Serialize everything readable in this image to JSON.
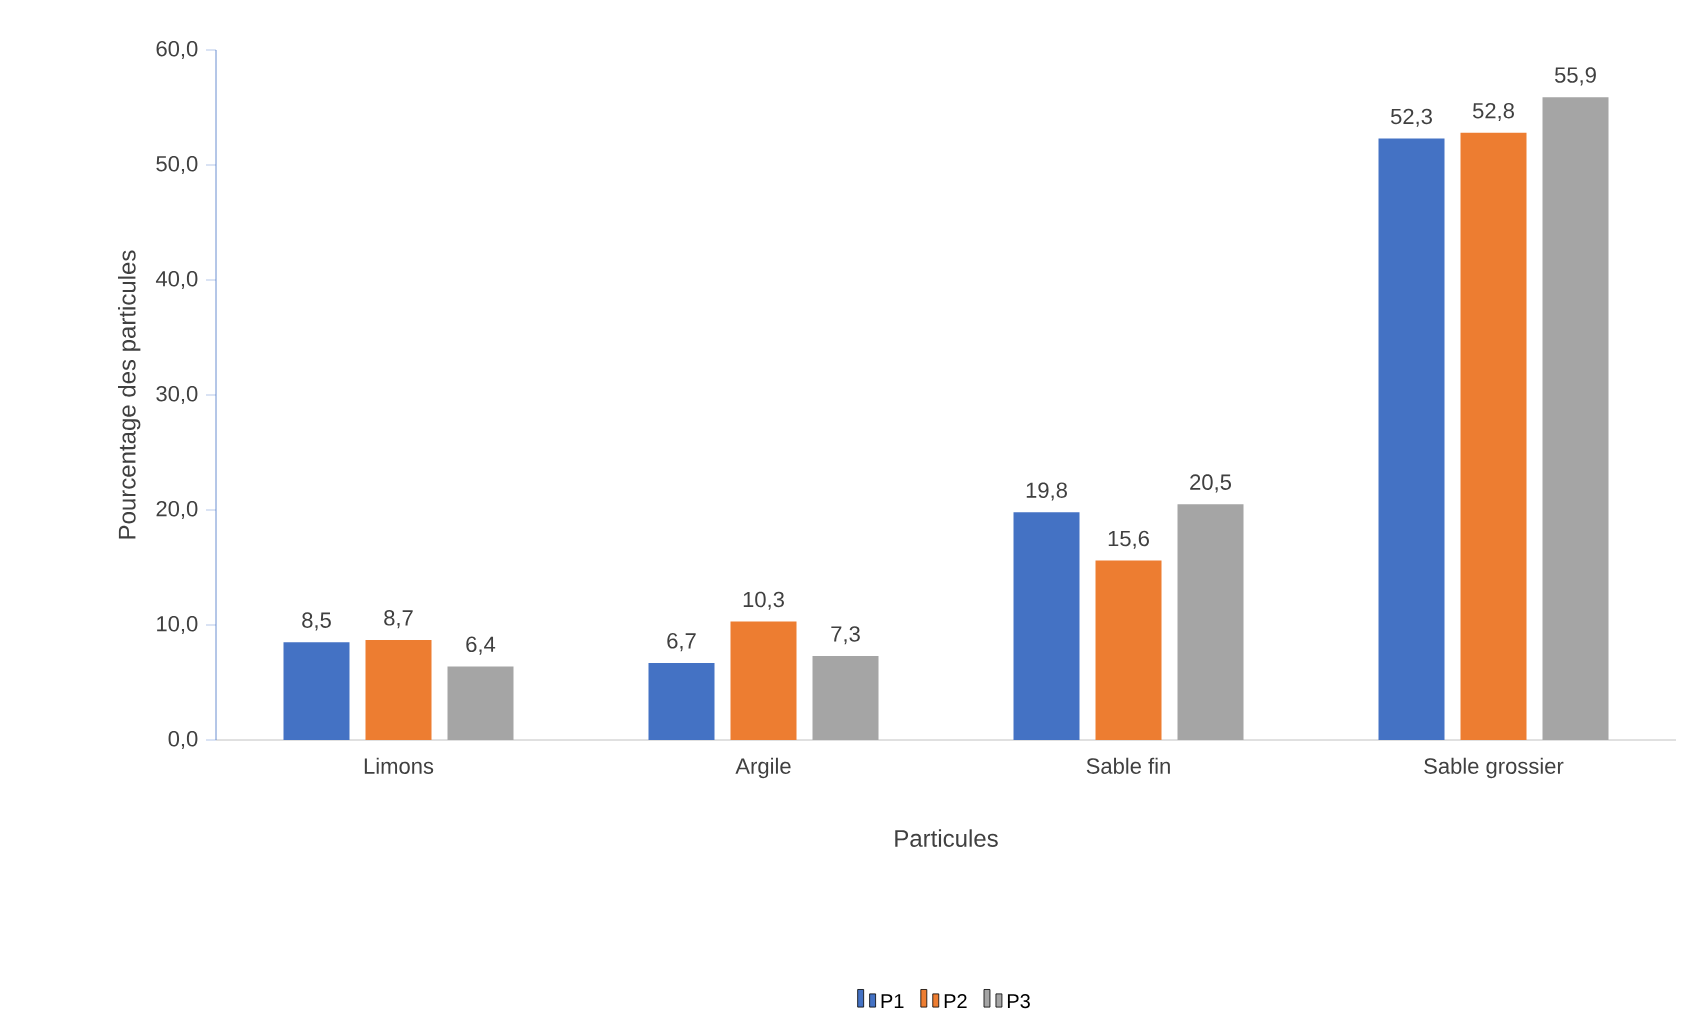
{
  "chart_data": {
    "type": "bar",
    "xlabel": "Particules",
    "ylabel": "Pourcentage des particules",
    "categories": [
      "Limons",
      "Argile",
      "Sable fin",
      "Sable grossier"
    ],
    "series": [
      {
        "name": "P1",
        "color": "#4472c4",
        "values": [
          8.5,
          6.7,
          19.8,
          52.3
        ],
        "value_labels": [
          "8,5",
          "6,7",
          "19,8",
          "52,3"
        ]
      },
      {
        "name": "P2",
        "color": "#ed7d31",
        "values": [
          8.7,
          10.3,
          15.6,
          52.8
        ],
        "value_labels": [
          "8,7",
          "10,3",
          "15,6",
          "52,8"
        ]
      },
      {
        "name": "P3",
        "color": "#a5a5a5",
        "values": [
          6.4,
          7.3,
          20.5,
          55.9
        ],
        "value_labels": [
          "6,4",
          "7,3",
          "20,5",
          "55,9"
        ]
      }
    ],
    "ylim": [
      0,
      60
    ],
    "yticks": [
      {
        "value": 0,
        "label": "0,0"
      },
      {
        "value": 10,
        "label": "10,0"
      },
      {
        "value": 20,
        "label": "20,0"
      },
      {
        "value": 30,
        "label": "30,0"
      },
      {
        "value": 40,
        "label": "40,0"
      },
      {
        "value": 50,
        "label": "50,0"
      },
      {
        "value": 60,
        "label": "60,0"
      }
    ],
    "legend": "bottom"
  }
}
